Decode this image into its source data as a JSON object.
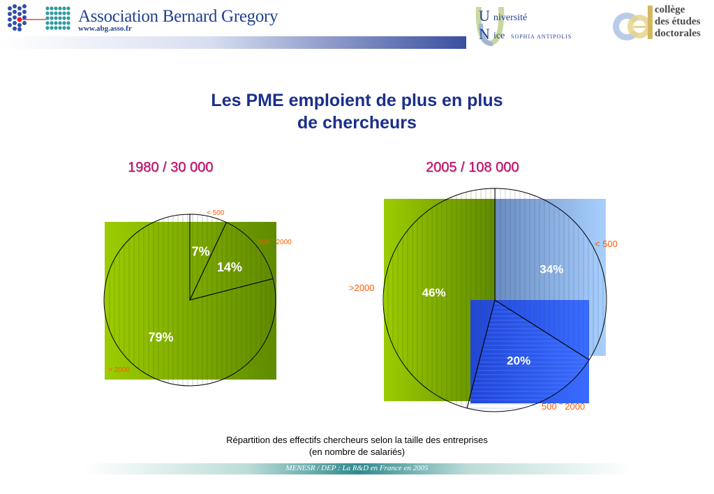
{
  "header": {
    "org_name": "Association Bernard Gregory",
    "org_url": "www.abg.asso.fr",
    "univ_line1": "niversité",
    "univ_line2": "ice",
    "univ_line3": "SOPHIA ANTIPOLIS",
    "college_line1": "collège",
    "college_line2": "des études",
    "college_line3": "doctorales"
  },
  "title_line1": "Les PME emploient de plus en plus",
  "title_line2": "de chercheurs",
  "chart_data": [
    {
      "type": "pie",
      "title": "1980 / 30 000",
      "labels": [
        "< 500",
        "500 - 2000",
        "> 2000"
      ],
      "label_texts": [
        "< 500",
        "500 ˜ 2000",
        "> 2000"
      ],
      "values": [
        7,
        14,
        79
      ],
      "value_labels": [
        "7%",
        "14%",
        "79%"
      ]
    },
    {
      "type": "pie",
      "title": "2005 / 108 000",
      "labels": [
        "< 500",
        "500 - 2000",
        ">2000"
      ],
      "label_texts": [
        "< 500",
        "500 ˜ 2000",
        ">2000"
      ],
      "values": [
        34,
        20,
        46
      ],
      "value_labels": [
        "34%",
        "20%",
        "46%"
      ]
    }
  ],
  "caption_line1": "Répartition des effectifs chercheurs selon la taille des entreprises",
  "caption_line2": "(en nombre de salariés)",
  "footer": "MENESR / DEP : La R&D en France en 2005",
  "colors": {
    "title": "#1a2f8a",
    "pie_title": "#c4006b",
    "label_orange": "#ff5a00",
    "green_light": "#9ccc00",
    "green_dark": "#5f8a00",
    "blue_light": "#a8d0ff",
    "blue_dark": "#6a8cc0",
    "blue_mid": "#2a55e8"
  }
}
